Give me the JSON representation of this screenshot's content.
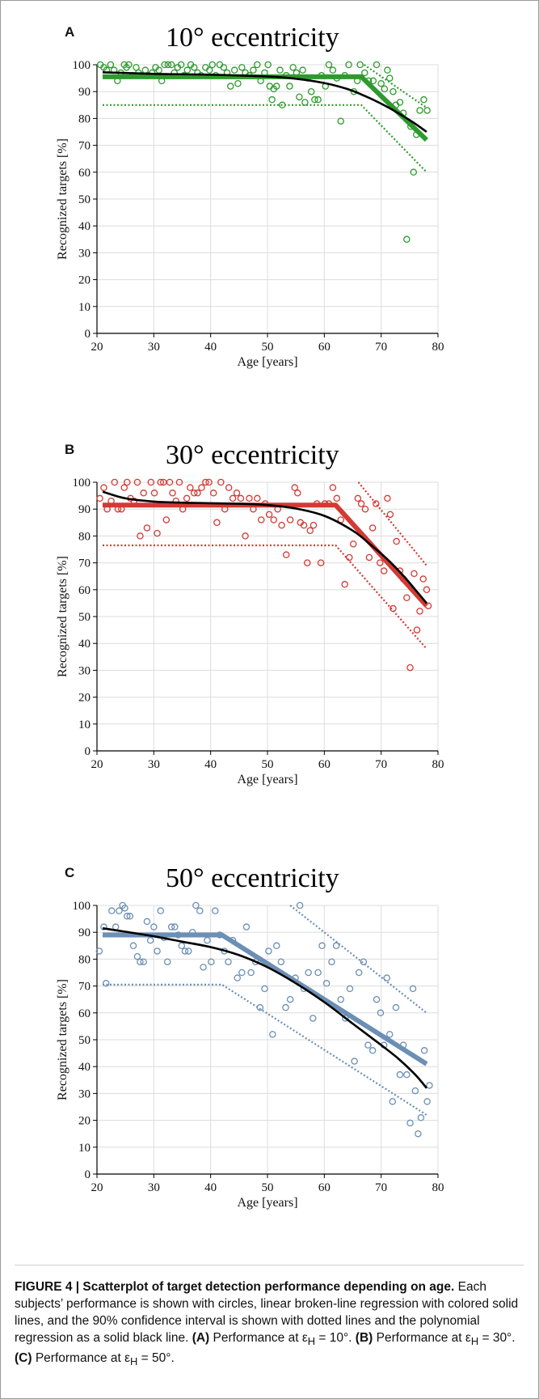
{
  "chart_data": [
    {
      "type": "scatter",
      "panel_label": "A",
      "title": "10° eccentricity",
      "xlabel": "Age [years]",
      "ylabel": "Recognized targets [%]",
      "xlim": [
        20,
        80
      ],
      "ylim": [
        0,
        100
      ],
      "xticks": [
        20,
        30,
        40,
        50,
        60,
        70,
        80
      ],
      "yticks": [
        0,
        10,
        20,
        30,
        40,
        50,
        60,
        70,
        80,
        90,
        100
      ],
      "grid": true,
      "color": "#2e9a2e",
      "points": [
        [
          20.6,
          100
        ],
        [
          21.2,
          99
        ],
        [
          21.7,
          98
        ],
        [
          22.4,
          100
        ],
        [
          23,
          98
        ],
        [
          23.6,
          94
        ],
        [
          24.2,
          97
        ],
        [
          24.8,
          100
        ],
        [
          25.2,
          99
        ],
        [
          25.6,
          100
        ],
        [
          26.3,
          96
        ],
        [
          26.9,
          99
        ],
        [
          27.3,
          97
        ],
        [
          27.8,
          96
        ],
        [
          28.5,
          98
        ],
        [
          29.1,
          96
        ],
        [
          29.7,
          97
        ],
        [
          30.3,
          99
        ],
        [
          30.9,
          98
        ],
        [
          31.4,
          94
        ],
        [
          31.9,
          100
        ],
        [
          32.5,
          100
        ],
        [
          33.1,
          100
        ],
        [
          33.6,
          97
        ],
        [
          34.2,
          99
        ],
        [
          34.8,
          100
        ],
        [
          35.3,
          96
        ],
        [
          35.9,
          98
        ],
        [
          36.5,
          100
        ],
        [
          37.1,
          99
        ],
        [
          37.7,
          97
        ],
        [
          38.3,
          96
        ],
        [
          39.1,
          99
        ],
        [
          39.8,
          98
        ],
        [
          40.3,
          100
        ],
        [
          40.9,
          96
        ],
        [
          41.6,
          100
        ],
        [
          42.3,
          99
        ],
        [
          42.9,
          97
        ],
        [
          43.5,
          92
        ],
        [
          44.2,
          98
        ],
        [
          44.8,
          93
        ],
        [
          45.5,
          99
        ],
        [
          46.1,
          97
        ],
        [
          46.8,
          96
        ],
        [
          47.5,
          98
        ],
        [
          48.2,
          100
        ],
        [
          48.8,
          94
        ],
        [
          49.5,
          97
        ],
        [
          50.1,
          100
        ],
        [
          50.4,
          92
        ],
        [
          50.8,
          87
        ],
        [
          51.1,
          91
        ],
        [
          51.6,
          92
        ],
        [
          52.2,
          98
        ],
        [
          52.6,
          85
        ],
        [
          53.3,
          96
        ],
        [
          53.9,
          92
        ],
        [
          54.5,
          99
        ],
        [
          55.1,
          97
        ],
        [
          55.6,
          88
        ],
        [
          56.2,
          98
        ],
        [
          56.6,
          86
        ],
        [
          57.1,
          95
        ],
        [
          57.7,
          90
        ],
        [
          58.3,
          87
        ],
        [
          58.9,
          87
        ],
        [
          59.5,
          96
        ],
        [
          60.2,
          92
        ],
        [
          60.8,
          100
        ],
        [
          61.5,
          98
        ],
        [
          62.2,
          95
        ],
        [
          62.9,
          79
        ],
        [
          63.6,
          96
        ],
        [
          64.3,
          100
        ],
        [
          65.2,
          90
        ],
        [
          65.8,
          94
        ],
        [
          66.3,
          100
        ],
        [
          67.1,
          97
        ],
        [
          67.8,
          94
        ],
        [
          68.6,
          94
        ],
        [
          69.2,
          100
        ],
        [
          70,
          93
        ],
        [
          70.6,
          91
        ],
        [
          71.1,
          98
        ],
        [
          71.5,
          95
        ],
        [
          72.1,
          90
        ],
        [
          72.6,
          85
        ],
        [
          73.3,
          86
        ],
        [
          73.9,
          82
        ],
        [
          74.5,
          35
        ],
        [
          75.2,
          77
        ],
        [
          75.7,
          60
        ],
        [
          76.2,
          74
        ],
        [
          76.8,
          83
        ],
        [
          77.5,
          87
        ],
        [
          78.1,
          83
        ]
      ],
      "broken_line": [
        [
          21,
          95.5
        ],
        [
          66.5,
          95.5
        ],
        [
          78,
          72
        ]
      ],
      "ci_dotted": [
        [
          [
            21,
            85
          ],
          [
            66.5,
            85
          ],
          [
            78,
            60
          ]
        ],
        [
          [
            67,
            100
          ],
          [
            78,
            84
          ]
        ]
      ],
      "polynomial": [
        [
          21,
          97.2
        ],
        [
          30,
          96.6
        ],
        [
          40,
          96.3
        ],
        [
          50,
          95.6
        ],
        [
          55,
          94.8
        ],
        [
          60,
          93.2
        ],
        [
          64,
          91
        ],
        [
          67,
          88.5
        ],
        [
          70,
          85.5
        ],
        [
          73,
          82
        ],
        [
          76,
          78
        ],
        [
          78,
          75
        ]
      ]
    },
    {
      "type": "scatter",
      "panel_label": "B",
      "title": "30° eccentricity",
      "xlabel": "Age [years]",
      "ylabel": "Recognized targets [%]",
      "xlim": [
        20,
        80
      ],
      "ylim": [
        0,
        100
      ],
      "xticks": [
        20,
        30,
        40,
        50,
        60,
        70,
        80
      ],
      "yticks": [
        0,
        10,
        20,
        30,
        40,
        50,
        60,
        70,
        80,
        90,
        100
      ],
      "grid": true,
      "color": "#d33a34",
      "points": [
        [
          20.5,
          94
        ],
        [
          21.2,
          98
        ],
        [
          21.8,
          90
        ],
        [
          22.5,
          93
        ],
        [
          23.1,
          100
        ],
        [
          23.7,
          90
        ],
        [
          24.3,
          90
        ],
        [
          24.8,
          98
        ],
        [
          25.3,
          100
        ],
        [
          25.9,
          94
        ],
        [
          26.5,
          93
        ],
        [
          27.1,
          100
        ],
        [
          27.6,
          80
        ],
        [
          28.2,
          96
        ],
        [
          28.8,
          83
        ],
        [
          29.5,
          100
        ],
        [
          30.1,
          96
        ],
        [
          30.6,
          81
        ],
        [
          31.2,
          100
        ],
        [
          31.7,
          100
        ],
        [
          32.2,
          86
        ],
        [
          32.8,
          100
        ],
        [
          33.3,
          96
        ],
        [
          33.9,
          93
        ],
        [
          34.5,
          100
        ],
        [
          35.1,
          90
        ],
        [
          35.8,
          94
        ],
        [
          36.4,
          98
        ],
        [
          37.1,
          96
        ],
        [
          37.7,
          96
        ],
        [
          38.4,
          98
        ],
        [
          39.1,
          100
        ],
        [
          39.7,
          100
        ],
        [
          40.5,
          96
        ],
        [
          41.1,
          85
        ],
        [
          41.8,
          100
        ],
        [
          42.5,
          90
        ],
        [
          43.2,
          98
        ],
        [
          43.9,
          94
        ],
        [
          44.6,
          96
        ],
        [
          45.3,
          94
        ],
        [
          46.1,
          80
        ],
        [
          46.8,
          94
        ],
        [
          47.5,
          90
        ],
        [
          48.2,
          94
        ],
        [
          48.9,
          86
        ],
        [
          49.6,
          92
        ],
        [
          50.3,
          88
        ],
        [
          51.1,
          86
        ],
        [
          51.8,
          90
        ],
        [
          52.5,
          84
        ],
        [
          53.3,
          73
        ],
        [
          54,
          86
        ],
        [
          54.8,
          98
        ],
        [
          55.3,
          96
        ],
        [
          55.8,
          85
        ],
        [
          56.4,
          84
        ],
        [
          57,
          70
        ],
        [
          57.5,
          82
        ],
        [
          58.1,
          84
        ],
        [
          58.7,
          92
        ],
        [
          59.4,
          70
        ],
        [
          60.1,
          92
        ],
        [
          60.8,
          92
        ],
        [
          61.5,
          98
        ],
        [
          62.2,
          94
        ],
        [
          62.9,
          86
        ],
        [
          63.6,
          62
        ],
        [
          64.4,
          72
        ],
        [
          65.1,
          77
        ],
        [
          65.9,
          94
        ],
        [
          66.5,
          92
        ],
        [
          67.2,
          90
        ],
        [
          67.9,
          72
        ],
        [
          68.5,
          83
        ],
        [
          69.1,
          92
        ],
        [
          69.8,
          70
        ],
        [
          70.5,
          67
        ],
        [
          71.1,
          94
        ],
        [
          71.6,
          88
        ],
        [
          72.1,
          53
        ],
        [
          72.7,
          78
        ],
        [
          73.3,
          67
        ],
        [
          73.9,
          64
        ],
        [
          74.5,
          57
        ],
        [
          75.1,
          31
        ],
        [
          75.8,
          66
        ],
        [
          76.3,
          45
        ],
        [
          76.8,
          52
        ],
        [
          77.4,
          64
        ],
        [
          78,
          60
        ],
        [
          78.3,
          54
        ]
      ],
      "broken_line": [
        [
          21,
          91.5
        ],
        [
          62,
          91.5
        ],
        [
          78,
          54
        ]
      ],
      "ci_dotted": [
        [
          [
            21,
            76.5
          ],
          [
            62,
            76.5
          ],
          [
            78,
            38
          ]
        ],
        [
          [
            66,
            100
          ],
          [
            78,
            69
          ]
        ]
      ],
      "polynomial": [
        [
          21,
          96.5
        ],
        [
          25,
          94
        ],
        [
          30,
          92.8
        ],
        [
          35,
          92.4
        ],
        [
          40,
          92.2
        ],
        [
          45,
          92
        ],
        [
          50,
          91.5
        ],
        [
          55,
          90.2
        ],
        [
          60,
          87.5
        ],
        [
          65,
          82
        ],
        [
          68,
          77
        ],
        [
          71,
          71.5
        ],
        [
          74,
          65
        ],
        [
          76,
          60
        ],
        [
          78,
          55
        ]
      ]
    },
    {
      "type": "scatter",
      "panel_label": "C",
      "title": "50° eccentricity",
      "xlabel": "Age [years]",
      "ylabel": "Recognized targets [%]",
      "xlim": [
        20,
        80
      ],
      "ylim": [
        0,
        100
      ],
      "xticks": [
        20,
        30,
        40,
        50,
        60,
        70,
        80
      ],
      "yticks": [
        0,
        10,
        20,
        30,
        40,
        50,
        60,
        70,
        80,
        90,
        100
      ],
      "grid": true,
      "color": "#6b8fb5",
      "points": [
        [
          20.4,
          83
        ],
        [
          21.2,
          92
        ],
        [
          21.6,
          71
        ],
        [
          22.6,
          98
        ],
        [
          23.3,
          92
        ],
        [
          23.9,
          98
        ],
        [
          24.5,
          100
        ],
        [
          24.9,
          99
        ],
        [
          25.3,
          96
        ],
        [
          25.8,
          96
        ],
        [
          26.4,
          85
        ],
        [
          27.1,
          81
        ],
        [
          27.6,
          79
        ],
        [
          28.2,
          79
        ],
        [
          28.8,
          94
        ],
        [
          29.4,
          87
        ],
        [
          30,
          92
        ],
        [
          30.6,
          83
        ],
        [
          31.2,
          98
        ],
        [
          31.8,
          88
        ],
        [
          32.4,
          79
        ],
        [
          33.1,
          92
        ],
        [
          33.7,
          92
        ],
        [
          34.3,
          89
        ],
        [
          34.9,
          85
        ],
        [
          35.5,
          83
        ],
        [
          36.1,
          83
        ],
        [
          36.8,
          90
        ],
        [
          37.4,
          100
        ],
        [
          38.1,
          98
        ],
        [
          38.7,
          77
        ],
        [
          39.4,
          87
        ],
        [
          40.1,
          79
        ],
        [
          40.8,
          98
        ],
        [
          41.6,
          89
        ],
        [
          42.4,
          83
        ],
        [
          43.1,
          79
        ],
        [
          43.9,
          87
        ],
        [
          44.7,
          73
        ],
        [
          45.5,
          75
        ],
        [
          46.3,
          92
        ],
        [
          47.1,
          75
        ],
        [
          47.9,
          79
        ],
        [
          48.7,
          62
        ],
        [
          49.5,
          69
        ],
        [
          50.2,
          83
        ],
        [
          50.9,
          52
        ],
        [
          51.6,
          85
        ],
        [
          52.4,
          79
        ],
        [
          53.2,
          62
        ],
        [
          54,
          65
        ],
        [
          54.9,
          73
        ],
        [
          55.7,
          100
        ],
        [
          56.4,
          69
        ],
        [
          57.2,
          75
        ],
        [
          58,
          58
        ],
        [
          58.9,
          75
        ],
        [
          59.6,
          85
        ],
        [
          60.4,
          71
        ],
        [
          61.3,
          79
        ],
        [
          62.1,
          85
        ],
        [
          62.9,
          65
        ],
        [
          63.7,
          58
        ],
        [
          64.5,
          69
        ],
        [
          65.3,
          42
        ],
        [
          66.1,
          75
        ],
        [
          66.9,
          79
        ],
        [
          67.7,
          48
        ],
        [
          68.5,
          46
        ],
        [
          69.2,
          65
        ],
        [
          69.9,
          60
        ],
        [
          70.5,
          48
        ],
        [
          71,
          73
        ],
        [
          71.5,
          52
        ],
        [
          72,
          27
        ],
        [
          72.6,
          62
        ],
        [
          73.3,
          37
        ],
        [
          73.9,
          48
        ],
        [
          74.5,
          37
        ],
        [
          75.1,
          19
        ],
        [
          75.6,
          69
        ],
        [
          76,
          31
        ],
        [
          76.5,
          15
        ],
        [
          77,
          21
        ],
        [
          77.6,
          46
        ],
        [
          78.1,
          27
        ],
        [
          78.5,
          33
        ]
      ],
      "broken_line": [
        [
          21,
          89
        ],
        [
          42,
          89
        ],
        [
          78,
          41
        ]
      ],
      "ci_dotted": [
        [
          [
            21,
            70.5
          ],
          [
            42,
            70.5
          ],
          [
            78,
            22
          ]
        ],
        [
          [
            54,
            100
          ],
          [
            78,
            60
          ]
        ]
      ],
      "polynomial": [
        [
          21,
          91.5
        ],
        [
          25,
          90.2
        ],
        [
          30,
          88.5
        ],
        [
          35,
          86.5
        ],
        [
          40,
          84.5
        ],
        [
          45,
          81.5
        ],
        [
          50,
          77
        ],
        [
          55,
          71
        ],
        [
          60,
          64
        ],
        [
          65,
          56
        ],
        [
          70,
          48
        ],
        [
          73,
          43
        ],
        [
          76,
          37
        ],
        [
          78,
          32
        ]
      ]
    }
  ],
  "caption": {
    "fig_label": "FIGURE 4 | Scatterplot of target detection performance depending on age.",
    "text_1": "Each subjects’ performance is shown with circles, linear broken-line regression with colored solid lines, and the 90% confidence interval is shown with dotted lines and the polynomial regression as a solid black line.",
    "label_a": "(A)",
    "text_a": "Performance at ε",
    "sub_h_a": "H",
    "eq_a": " = 10°.",
    "label_b": "(B)",
    "text_b": "Performance at ε",
    "sub_h_b": "H",
    "eq_b": " = 30°.",
    "label_c": "(C)",
    "text_c": "Performance at ε",
    "sub_h_c": "H",
    "eq_c": " = 50°."
  }
}
